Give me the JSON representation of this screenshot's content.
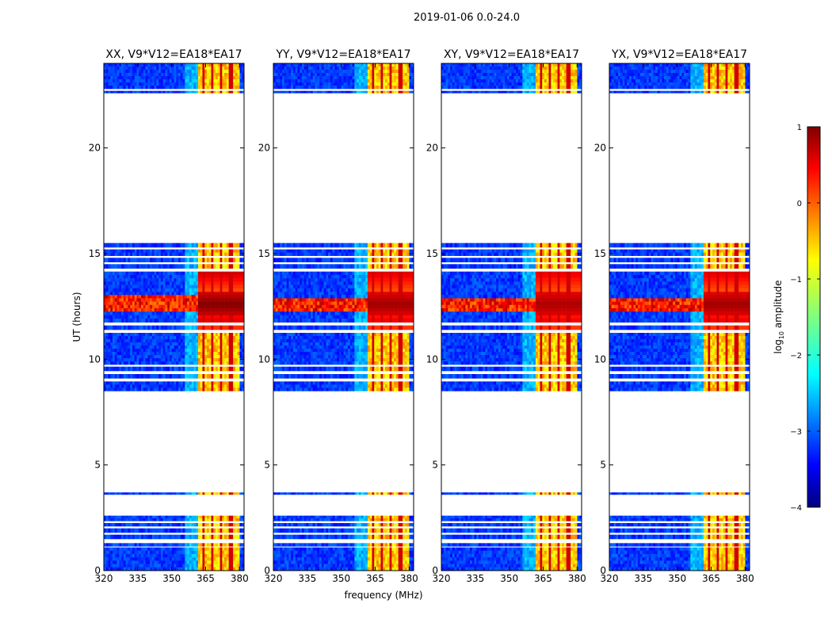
{
  "suptitle": "2019-01-06 0.0-24.0",
  "chart_data": {
    "type": "heatmap",
    "panels": [
      {
        "title": "XX, V9*V12=EA18*EA17",
        "intensity": 1.0
      },
      {
        "title": "YY, V9*V12=EA18*EA17",
        "intensity": 0.85
      },
      {
        "title": "XY, V9*V12=EA18*EA17",
        "intensity": 0.8
      },
      {
        "title": "YX, V9*V12=EA18*EA17",
        "intensity": 0.85
      }
    ],
    "x": {
      "label": "frequency (MHz)",
      "range": [
        320,
        382
      ],
      "ticks": [
        320,
        335,
        350,
        365,
        380
      ]
    },
    "y": {
      "label": "UT (hours)",
      "range": [
        0,
        24
      ],
      "ticks": [
        0,
        5,
        10,
        15,
        20
      ]
    },
    "data_time_ranges_hours": [
      [
        0.0,
        1.1
      ],
      [
        1.15,
        1.3
      ],
      [
        1.5,
        1.7
      ],
      [
        1.8,
        2.0
      ],
      [
        2.1,
        2.25
      ],
      [
        2.35,
        2.6
      ],
      [
        3.6,
        3.7
      ],
      [
        8.5,
        8.95
      ],
      [
        9.1,
        9.3
      ],
      [
        9.45,
        9.65
      ],
      [
        9.75,
        11.25
      ],
      [
        11.4,
        11.6
      ],
      [
        11.75,
        12.1
      ],
      [
        12.1,
        13.2
      ],
      [
        13.2,
        14.15
      ],
      [
        14.3,
        14.5
      ],
      [
        14.6,
        14.8
      ],
      [
        14.9,
        15.2
      ],
      [
        15.3,
        15.5
      ],
      [
        22.6,
        22.7
      ],
      [
        22.8,
        24.0
      ]
    ],
    "strong_band_mhz": [
      362,
      380
    ],
    "bright_channels_mhz": [
      364,
      368,
      372,
      376
    ],
    "colorbar": {
      "label": "log10 amplitude",
      "range": [
        -4,
        1
      ],
      "ticks": [
        1,
        0,
        -1,
        -2,
        -3,
        -4
      ],
      "colormap": "jet"
    }
  }
}
